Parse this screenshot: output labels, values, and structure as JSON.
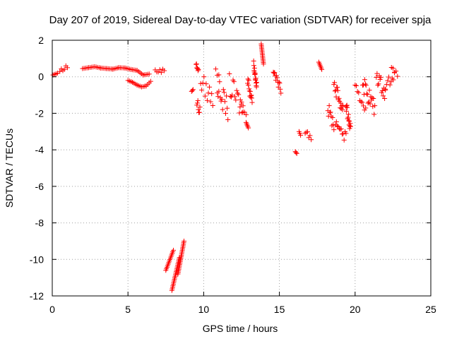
{
  "chart_data": {
    "type": "scatter",
    "title": "Day 207 of 2019, Sidereal Day-to-day VTEC variation (SDTVAR) for receiver spja",
    "xlabel": "GPS time / hours",
    "ylabel": "SDTVAR / TECUs",
    "xlim": [
      0,
      25
    ],
    "ylim": [
      -12,
      2
    ],
    "xticks": [
      0,
      5,
      10,
      15,
      20,
      25
    ],
    "yticks": [
      2,
      0,
      -2,
      -4,
      -6,
      -8,
      -10,
      -12
    ],
    "xtick_labels": [
      "0",
      "5",
      "10",
      "15",
      "20",
      "25"
    ],
    "ytick_labels": [
      "2",
      "0",
      "-2",
      "-4",
      "-6",
      "-8",
      "-10",
      "-12"
    ],
    "grid": true,
    "marker": "plus",
    "color": "#ff0000",
    "series": [
      {
        "name": "SDTVAR",
        "segments": [
          {
            "x": [
              0.05,
              0.35
            ],
            "y": [
              0.1,
              0.2
            ]
          },
          {
            "x": [
              0.5,
              1.0
            ],
            "y": [
              0.3,
              0.6
            ],
            "wiggle": 0.15
          },
          {
            "x": [
              2.0,
              2.4,
              2.8,
              3.2,
              3.6,
              4.0,
              4.4,
              4.8,
              5.2,
              5.6,
              6.0,
              6.4
            ],
            "y": [
              0.45,
              0.5,
              0.55,
              0.48,
              0.45,
              0.42,
              0.5,
              0.48,
              0.4,
              0.35,
              0.1,
              0.15
            ]
          },
          {
            "x": [
              5.0,
              5.3,
              5.6,
              5.9,
              6.2,
              6.5
            ],
            "y": [
              -0.2,
              -0.3,
              -0.45,
              -0.55,
              -0.5,
              -0.25
            ]
          },
          {
            "x": [
              6.8,
              7.4
            ],
            "y": [
              0.3,
              0.35
            ],
            "wiggle": 0.1
          },
          {
            "x": [
              7.5,
              8.0
            ],
            "y": [
              -10.6,
              -9.5
            ]
          },
          {
            "x": [
              7.9,
              8.4
            ],
            "y": [
              -11.7,
              -9.9
            ]
          },
          {
            "x": [
              8.3,
              8.7
            ],
            "y": [
              -10.8,
              -9.0
            ]
          },
          {
            "x": [
              9.2,
              9.3
            ],
            "y": [
              -0.8,
              -0.7
            ]
          },
          {
            "x": [
              9.5,
              9.65
            ],
            "y": [
              0.8,
              0.3
            ],
            "wiggle": 0.2
          },
          {
            "x": [
              9.55,
              9.75
            ],
            "y": [
              -1.4,
              -1.9
            ],
            "wiggle": 0.3
          },
          {
            "x": [
              9.8,
              10.6
            ],
            "y": [
              -0.3,
              -1.2
            ],
            "wiggle": 0.6
          },
          {
            "x": [
              10.8,
              11.0
            ],
            "y": [
              0.3,
              0.2
            ],
            "wiggle": 0.2
          },
          {
            "x": [
              10.9,
              11.6
            ],
            "y": [
              -0.6,
              -1.8
            ],
            "wiggle": 0.6
          },
          {
            "x": [
              11.7,
              12.6
            ],
            "y": [
              -0.5,
              -1.8
            ],
            "wiggle": 0.7
          },
          {
            "x": [
              12.4,
              12.8
            ],
            "y": [
              -1.5,
              -1.8
            ],
            "wiggle": 0.3
          },
          {
            "x": [
              12.8,
              12.95
            ],
            "y": [
              -2.5,
              -2.8
            ]
          },
          {
            "x": [
              12.9,
              13.2
            ],
            "y": [
              -0.2,
              -1.2
            ],
            "wiggle": 0.4
          },
          {
            "x": [
              13.3,
              13.5
            ],
            "y": [
              0.7,
              -0.5
            ],
            "wiggle": 0.2
          },
          {
            "x": [
              13.8,
              13.95
            ],
            "y": [
              1.8,
              0.7
            ]
          },
          {
            "x": [
              14.6,
              15.1
            ],
            "y": [
              0.3,
              -0.7
            ],
            "wiggle": 0.2
          },
          {
            "x": [
              16.05,
              16.15
            ],
            "y": [
              -4.1,
              -4.2
            ]
          },
          {
            "x": [
              16.3,
              16.4
            ],
            "y": [
              -3.0,
              -3.2
            ]
          },
          {
            "x": [
              16.7,
              17.1
            ],
            "y": [
              -2.9,
              -3.3
            ],
            "wiggle": 0.2
          },
          {
            "x": [
              17.6,
              17.8
            ],
            "y": [
              0.8,
              0.4
            ]
          },
          {
            "x": [
              18.2,
              18.6
            ],
            "y": [
              -1.8,
              -2.6
            ],
            "wiggle": 0.4
          },
          {
            "x": [
              18.6,
              19.2
            ],
            "y": [
              -0.4,
              -1.8
            ],
            "wiggle": 0.4
          },
          {
            "x": [
              18.7,
              19.4
            ],
            "y": [
              -2.4,
              -3.3
            ],
            "wiggle": 0.4
          },
          {
            "x": [
              19.4,
              19.7
            ],
            "y": [
              -1.6,
              -2.9
            ],
            "wiggle": 0.3
          },
          {
            "x": [
              20.0,
              20.7
            ],
            "y": [
              -0.8,
              -1.6
            ],
            "wiggle": 0.4
          },
          {
            "x": [
              20.5,
              21.3
            ],
            "y": [
              -0.3,
              -1.8
            ],
            "wiggle": 0.5
          },
          {
            "x": [
              21.4,
              22.0
            ],
            "y": [
              0.1,
              -0.9
            ],
            "wiggle": 0.4
          },
          {
            "x": [
              22.0,
              22.6
            ],
            "y": [
              -0.5,
              0.2
            ],
            "wiggle": 0.3
          },
          {
            "x": [
              22.4,
              22.8
            ],
            "y": [
              0.4,
              0.1
            ],
            "wiggle": 0.15
          }
        ]
      }
    ]
  }
}
